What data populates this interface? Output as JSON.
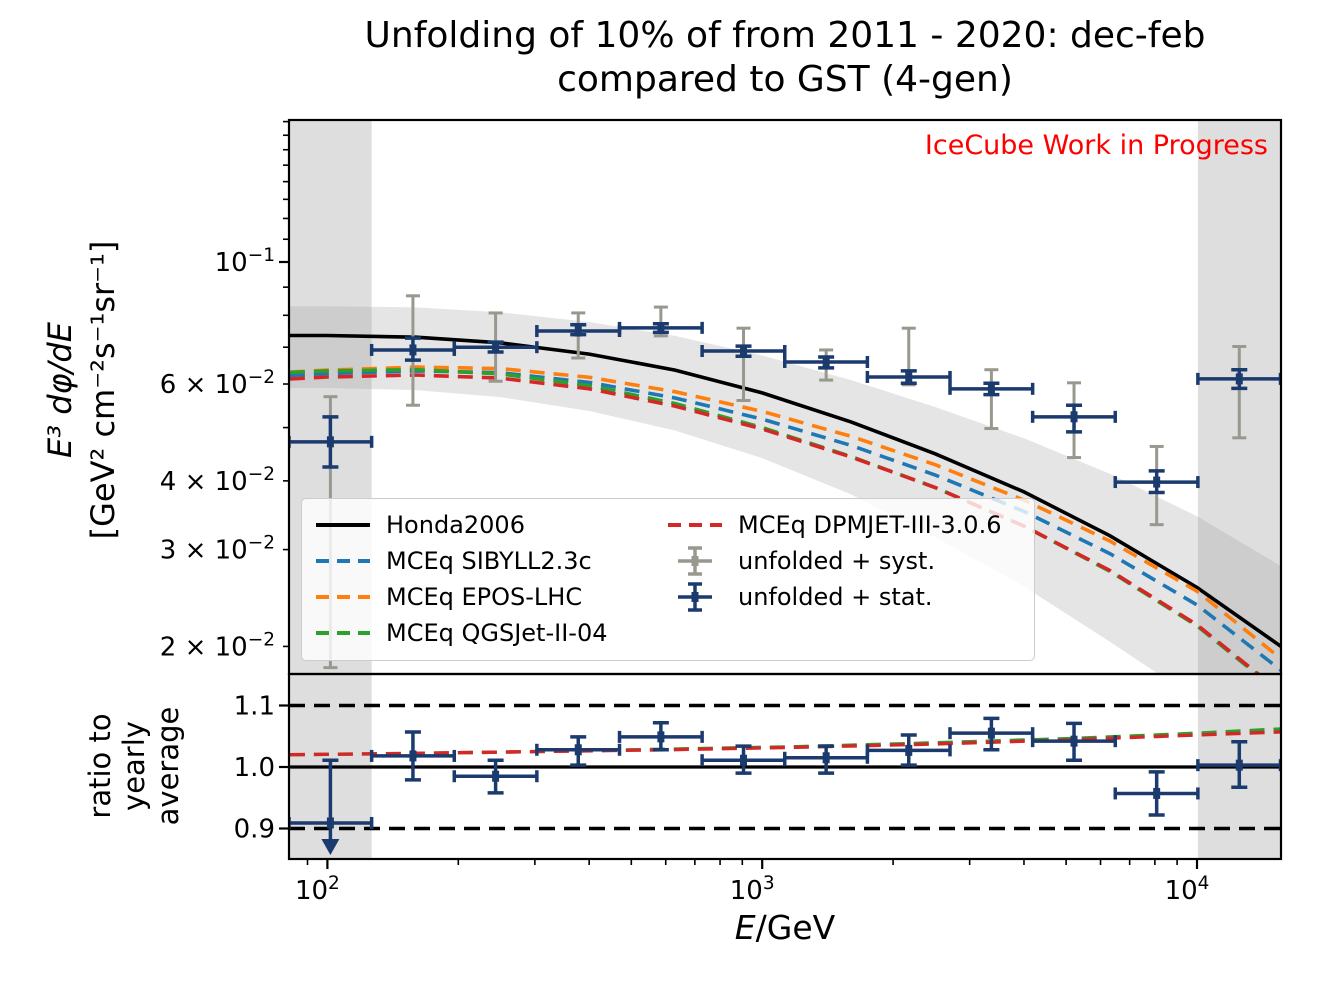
{
  "title": {
    "line1": "Unfolding of 10% of from 2011 - 2020: dec-feb",
    "line2": "compared to GST (4-gen)"
  },
  "watermark": "IceCube Work in Progress",
  "axes": {
    "x": {
      "label_italic": "E",
      "label_rest": "/GeV",
      "scale": "log",
      "range_GeV": [
        81.6,
        15600
      ],
      "major_ticks": [
        {
          "value": 100,
          "exp": "2"
        },
        {
          "value": 1000,
          "exp": "3"
        },
        {
          "value": 10000,
          "exp": "4"
        }
      ],
      "minor_ticks": [
        90,
        200,
        300,
        400,
        500,
        600,
        700,
        800,
        900,
        2000,
        3000,
        4000,
        5000,
        6000,
        7000,
        8000,
        9000
      ]
    },
    "y_main": {
      "label_line1": "E³ dφ/dE",
      "label_line2": "[GeV² cm⁻²s⁻¹sr⁻¹]",
      "scale": "log",
      "range": [
        0.0178,
        0.1812
      ],
      "labeled_ticks": [
        {
          "value": 0.1,
          "coeff": "",
          "exp": "−1"
        },
        {
          "value": 0.06,
          "coeff": "6 × ",
          "exp": "−2"
        },
        {
          "value": 0.04,
          "coeff": "4 × ",
          "exp": "−2"
        },
        {
          "value": 0.03,
          "coeff": "3 × ",
          "exp": "−2"
        },
        {
          "value": 0.02,
          "coeff": "2 × ",
          "exp": "−2"
        }
      ],
      "minor_ticks": [
        0.02,
        0.03,
        0.04,
        0.05,
        0.06,
        0.07,
        0.08,
        0.09,
        0.11,
        0.12,
        0.13,
        0.14,
        0.15,
        0.16,
        0.17,
        0.18
      ],
      "major_ticks": [
        0.1
      ]
    },
    "y_ratio": {
      "lines": [
        "ratio to",
        "yearly",
        "average"
      ],
      "scale": "linear",
      "range": [
        0.849,
        1.151
      ],
      "labeled_ticks": [
        {
          "value": 1.1,
          "label": "1.1"
        },
        {
          "value": 1.0,
          "label": "1.0"
        },
        {
          "value": 0.9,
          "label": "0.9"
        }
      ]
    }
  },
  "legend": {
    "col1": [
      {
        "label": "Honda2006",
        "style": "solid",
        "color": "#000000"
      },
      {
        "label": "MCEq SIBYLL2.3c",
        "style": "dash",
        "color": "#1f77b4"
      },
      {
        "label": "MCEq EPOS-LHC",
        "style": "dash",
        "color": "#ff7f0e"
      },
      {
        "label": "MCEq QGSJet-II-04",
        "style": "dash",
        "color": "#2ca02c"
      }
    ],
    "col2": [
      {
        "label": "MCEq DPMJET-III-3.0.6",
        "style": "dash",
        "color": "#d62728"
      },
      {
        "label": "unfolded + syst.",
        "style": "errorbar",
        "color": "#98988f"
      },
      {
        "label": "unfolded + stat.",
        "style": "errorbar",
        "color": "#1b3a6d"
      }
    ]
  },
  "chart_data": {
    "type": "line+errorbar",
    "x_scale": "log",
    "x_range_GeV": [
      81.6,
      15600
    ],
    "y_main_range": [
      0.0178,
      0.1812
    ],
    "y_ratio_range": [
      0.849,
      1.151
    ],
    "bin_edges_GeV": [
      81.6,
      126.4,
      195.8,
      303.2,
      469.7,
      727.5,
      1126.9,
      1745.5,
      2703.6,
      4187.9,
      6486.6,
      10047,
      15562
    ],
    "unfolded": {
      "E": [
        101.6,
        157.3,
        243.7,
        377.5,
        584.7,
        905.8,
        1403,
        2173,
        3366,
        5214,
        8077,
        12510
      ],
      "flux": [
        0.0471,
        0.0692,
        0.07,
        0.0749,
        0.0759,
        0.0689,
        0.0658,
        0.0618,
        0.0588,
        0.0523,
        0.0398,
        0.0613
      ],
      "stat_hi": [
        0.0523,
        0.0727,
        0.0715,
        0.0769,
        0.0772,
        0.0703,
        0.0672,
        0.0634,
        0.0602,
        0.0549,
        0.0417,
        0.0637
      ],
      "stat_lo": [
        0.0424,
        0.0663,
        0.0686,
        0.0738,
        0.0745,
        0.0674,
        0.0642,
        0.0602,
        0.0574,
        0.0491,
        0.0381,
        0.0589
      ],
      "syst_hi": [
        0.0569,
        0.0868,
        0.0808,
        0.0808,
        0.0828,
        0.0758,
        0.0692,
        0.0758,
        0.0637,
        0.0603,
        0.0462,
        0.0702
      ],
      "syst_lo": [
        0.0183,
        0.0549,
        0.0607,
        0.0669,
        0.0734,
        0.056,
        0.061,
        0.0598,
        0.0498,
        0.0441,
        0.0333,
        0.0479
      ]
    },
    "ratio_points": {
      "values": [
        0.909,
        1.018,
        0.985,
        1.028,
        1.049,
        1.011,
        1.015,
        1.027,
        1.055,
        1.042,
        0.957,
        1.003
      ],
      "hi": [
        1.011,
        1.057,
        1.011,
        1.049,
        1.072,
        1.034,
        1.034,
        1.052,
        1.079,
        1.071,
        0.992,
        1.041
      ],
      "lo": [
        0.858,
        0.979,
        0.958,
        1.003,
        1.028,
        0.99,
        0.99,
        1.003,
        1.028,
        1.011,
        0.922,
        0.967
      ],
      "first_bin_arrow_down": true
    },
    "models": {
      "E": [
        82,
        100,
        160,
        250,
        400,
        630,
        1000,
        1600,
        2500,
        4000,
        6300,
        10000,
        15600
      ],
      "honda2006": [
        0.0735,
        0.0735,
        0.073,
        0.0713,
        0.068,
        0.0636,
        0.0578,
        0.0512,
        0.0448,
        0.0382,
        0.0318,
        0.0256,
        0.02
      ],
      "mceq_sibyll23c": [
        0.0622,
        0.0627,
        0.0634,
        0.0629,
        0.0604,
        0.0566,
        0.0518,
        0.0464,
        0.041,
        0.0352,
        0.0295,
        0.0238,
        0.0181
      ],
      "mceq_epos_lhc": [
        0.0631,
        0.0636,
        0.0644,
        0.064,
        0.0617,
        0.0581,
        0.0535,
        0.0482,
        0.0428,
        0.0369,
        0.0311,
        0.0252,
        0.019
      ],
      "mceq_qgsjet_ii_04": [
        0.063,
        0.0634,
        0.0637,
        0.0626,
        0.0596,
        0.0553,
        0.05,
        0.0443,
        0.0389,
        0.0331,
        0.0274,
        0.0218,
        0.0164
      ],
      "mceq_dpmjet_iii_306": [
        0.0613,
        0.0618,
        0.0623,
        0.0615,
        0.0588,
        0.0547,
        0.0497,
        0.0442,
        0.0389,
        0.0331,
        0.0275,
        0.0219,
        0.0165
      ]
    },
    "syst_band": {
      "hi": [
        0.0831,
        0.0831,
        0.0827,
        0.081,
        0.0778,
        0.0734,
        0.0676,
        0.061,
        0.0545,
        0.0478,
        0.0412,
        0.0345,
        0.028
      ],
      "lo": [
        0.059,
        0.059,
        0.0585,
        0.0568,
        0.0536,
        0.0494,
        0.044,
        0.0378,
        0.0316,
        0.0257,
        0.0204,
        0.016,
        0.0122
      ]
    },
    "model_ratio": {
      "E": [
        82,
        150,
        300,
        600,
        1200,
        2400,
        5000,
        10000,
        15600
      ],
      "dpmjet": [
        1.02,
        1.022,
        1.025,
        1.028,
        1.032,
        1.037,
        1.044,
        1.052,
        1.057
      ],
      "qgsjet": [
        1.02,
        1.022,
        1.025,
        1.029,
        1.033,
        1.039,
        1.046,
        1.055,
        1.062
      ]
    },
    "ratio_reference_lines": {
      "dashed": [
        0.9,
        1.1
      ],
      "solid": [
        1.0
      ]
    },
    "shaded_bins_GeV": [
      [
        81.6,
        126.4
      ],
      [
        10047,
        15600
      ]
    ],
    "colors": {
      "honda": "#000000",
      "sibyll": "#1f77b4",
      "epos": "#ff7f0e",
      "qgsjet": "#2ca02c",
      "dpmjet": "#d62728",
      "stat": "#1b3a6d",
      "syst": "#98988f",
      "watermark": "#ff0000",
      "band_gray": "#a0a0a0"
    }
  }
}
